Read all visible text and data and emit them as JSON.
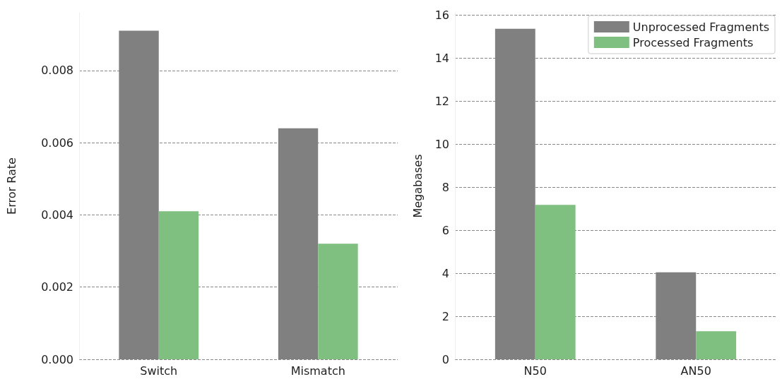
{
  "chart_data": [
    {
      "type": "bar",
      "ylabel": "Error Rate",
      "categories": [
        "Switch",
        "Mismatch"
      ],
      "series": [
        {
          "color": "#808080",
          "values": [
            0.0091,
            0.0064
          ]
        },
        {
          "color": "#7fbf7f",
          "values": [
            0.0041,
            0.0032
          ]
        }
      ],
      "ylim": [
        0,
        0.0096
      ],
      "yticks": [
        {
          "value": 0,
          "label": "0.000"
        },
        {
          "value": 0.002,
          "label": "0.002"
        },
        {
          "value": 0.004,
          "label": "0.004"
        },
        {
          "value": 0.006,
          "label": "0.006"
        },
        {
          "value": 0.008,
          "label": "0.008"
        }
      ],
      "grid": "y"
    },
    {
      "type": "bar",
      "ylabel": "Megabases",
      "categories": [
        "N50",
        "AN50"
      ],
      "series": [
        {
          "name": "Unprocessed Fragments",
          "color": "#808080",
          "values": [
            15.35,
            4.04
          ]
        },
        {
          "name": "Processed Fragments",
          "color": "#7fbf7f",
          "values": [
            7.17,
            1.3
          ]
        }
      ],
      "ylim": [
        0,
        16.1
      ],
      "yticks": [
        0,
        2,
        4,
        6,
        8,
        10,
        12,
        14,
        16
      ],
      "grid": "y",
      "legend": "top right"
    }
  ]
}
